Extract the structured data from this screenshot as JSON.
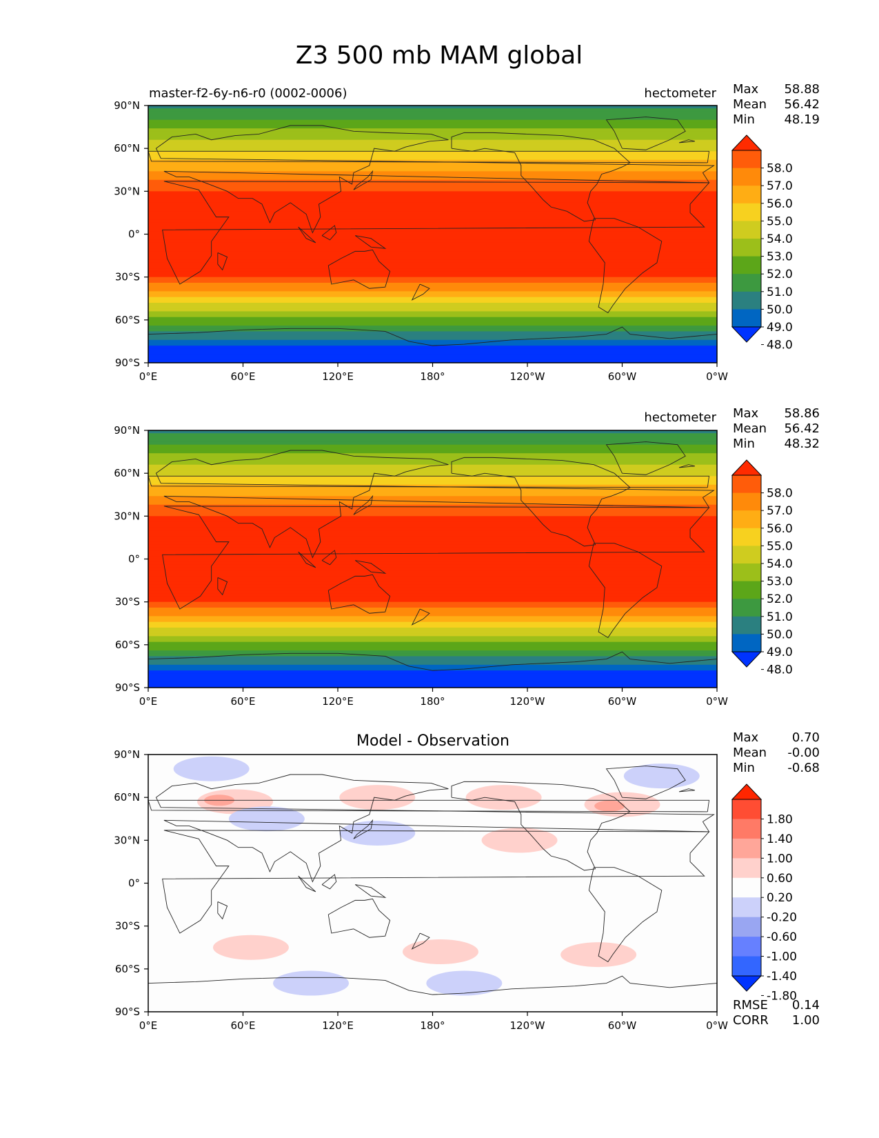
{
  "figure": {
    "title": "Z3 500 mb MAM global"
  },
  "colors": {
    "z3_levels": [
      "#0033ff",
      "#0066c2",
      "#2b8080",
      "#3d9940",
      "#5ca619",
      "#9cbf1a",
      "#cfcc1f",
      "#f7d11f",
      "#ffad14",
      "#ff8a0a",
      "#ff5c0a",
      "#ff2b00"
    ],
    "diff_levels": [
      "#0033ff",
      "#3366ff",
      "#6680ff",
      "#99a6f2",
      "#ccd1fa",
      "#fdfdfd",
      "#ffd1cc",
      "#ffa699",
      "#ff7a66",
      "#ff4d33",
      "#ff2600"
    ]
  },
  "chart_data": [
    {
      "type": "heatmap",
      "panel": "model",
      "left_title": "master-f2-6y-n6-r0 (0002-0006)",
      "center_title": "",
      "units": "hectometer",
      "stats": [
        {
          "label": "Max",
          "value": "58.88"
        },
        {
          "label": "Mean",
          "value": "56.42"
        },
        {
          "label": "Min",
          "value": "48.19"
        }
      ],
      "colorbar_ticks": [
        "58.0",
        "57.0",
        "56.0",
        "55.0",
        "54.0",
        "53.0",
        "52.0",
        "51.0",
        "50.0",
        "49.0",
        "48.0"
      ],
      "xticks": [
        "0°E",
        "60°E",
        "120°E",
        "180°",
        "120°W",
        "60°W",
        "0°W"
      ],
      "yticks": [
        "90°N",
        "60°N",
        "30°N",
        "0°",
        "30°S",
        "60°S",
        "90°S"
      ],
      "lon_range": [
        0,
        360
      ],
      "lat_range": [
        -90,
        90
      ]
    },
    {
      "type": "heatmap",
      "panel": "observation",
      "left_title": "",
      "center_title": "",
      "units": "hectometer",
      "stats": [
        {
          "label": "Max",
          "value": "58.86"
        },
        {
          "label": "Mean",
          "value": "56.42"
        },
        {
          "label": "Min",
          "value": "48.32"
        }
      ],
      "colorbar_ticks": [
        "58.0",
        "57.0",
        "56.0",
        "55.0",
        "54.0",
        "53.0",
        "52.0",
        "51.0",
        "50.0",
        "49.0",
        "48.0"
      ],
      "xticks": [
        "0°E",
        "60°E",
        "120°E",
        "180°",
        "120°W",
        "60°W",
        "0°W"
      ],
      "yticks": [
        "90°N",
        "60°N",
        "30°N",
        "0°",
        "30°S",
        "60°S",
        "90°S"
      ],
      "lon_range": [
        0,
        360
      ],
      "lat_range": [
        -90,
        90
      ]
    },
    {
      "type": "heatmap",
      "panel": "difference",
      "left_title": "",
      "center_title": "Model - Observation",
      "units": "",
      "stats": [
        {
          "label": "Max",
          "value": "0.70"
        },
        {
          "label": "Mean",
          "value": "-0.00"
        },
        {
          "label": "Min",
          "value": "-0.68"
        }
      ],
      "colorbar_ticks": [
        "1.80",
        "1.40",
        "1.00",
        "0.60",
        "0.20",
        "-0.20",
        "-0.60",
        "-1.00",
        "-1.40",
        "-1.80"
      ],
      "xticks": [
        "0°E",
        "60°E",
        "120°E",
        "180°",
        "120°W",
        "60°W",
        "0°W"
      ],
      "yticks": [
        "90°N",
        "60°N",
        "30°N",
        "0°",
        "30°S",
        "60°S",
        "90°S"
      ],
      "lon_range": [
        0,
        360
      ],
      "lat_range": [
        -90,
        90
      ],
      "metrics": [
        {
          "label": "RMSE",
          "value": "0.14"
        },
        {
          "label": "CORR",
          "value": "1.00"
        }
      ],
      "anomalies": [
        {
          "lon": 55,
          "lat": 57,
          "value": 0.4
        },
        {
          "lon": 45,
          "lat": 58,
          "value": 0.7
        },
        {
          "lon": 145,
          "lat": 60,
          "value": 0.3
        },
        {
          "lon": 225,
          "lat": 60,
          "value": 0.3
        },
        {
          "lon": 300,
          "lat": 55,
          "value": 0.5
        },
        {
          "lon": 292,
          "lat": 54,
          "value": 0.7
        },
        {
          "lon": 235,
          "lat": 30,
          "value": 0.3
        },
        {
          "lon": 65,
          "lat": -45,
          "value": 0.3
        },
        {
          "lon": 185,
          "lat": -48,
          "value": 0.3
        },
        {
          "lon": 285,
          "lat": -50,
          "value": 0.35
        },
        {
          "lon": 40,
          "lat": 80,
          "value": -0.3
        },
        {
          "lon": 325,
          "lat": 75,
          "value": -0.3
        },
        {
          "lon": 75,
          "lat": 45,
          "value": -0.3
        },
        {
          "lon": 145,
          "lat": 35,
          "value": -0.35
        },
        {
          "lon": 103,
          "lat": -70,
          "value": -0.35
        },
        {
          "lon": 200,
          "lat": -70,
          "value": -0.4
        },
        {
          "lon": 207,
          "lat": -68,
          "value": -0.6
        }
      ]
    }
  ]
}
